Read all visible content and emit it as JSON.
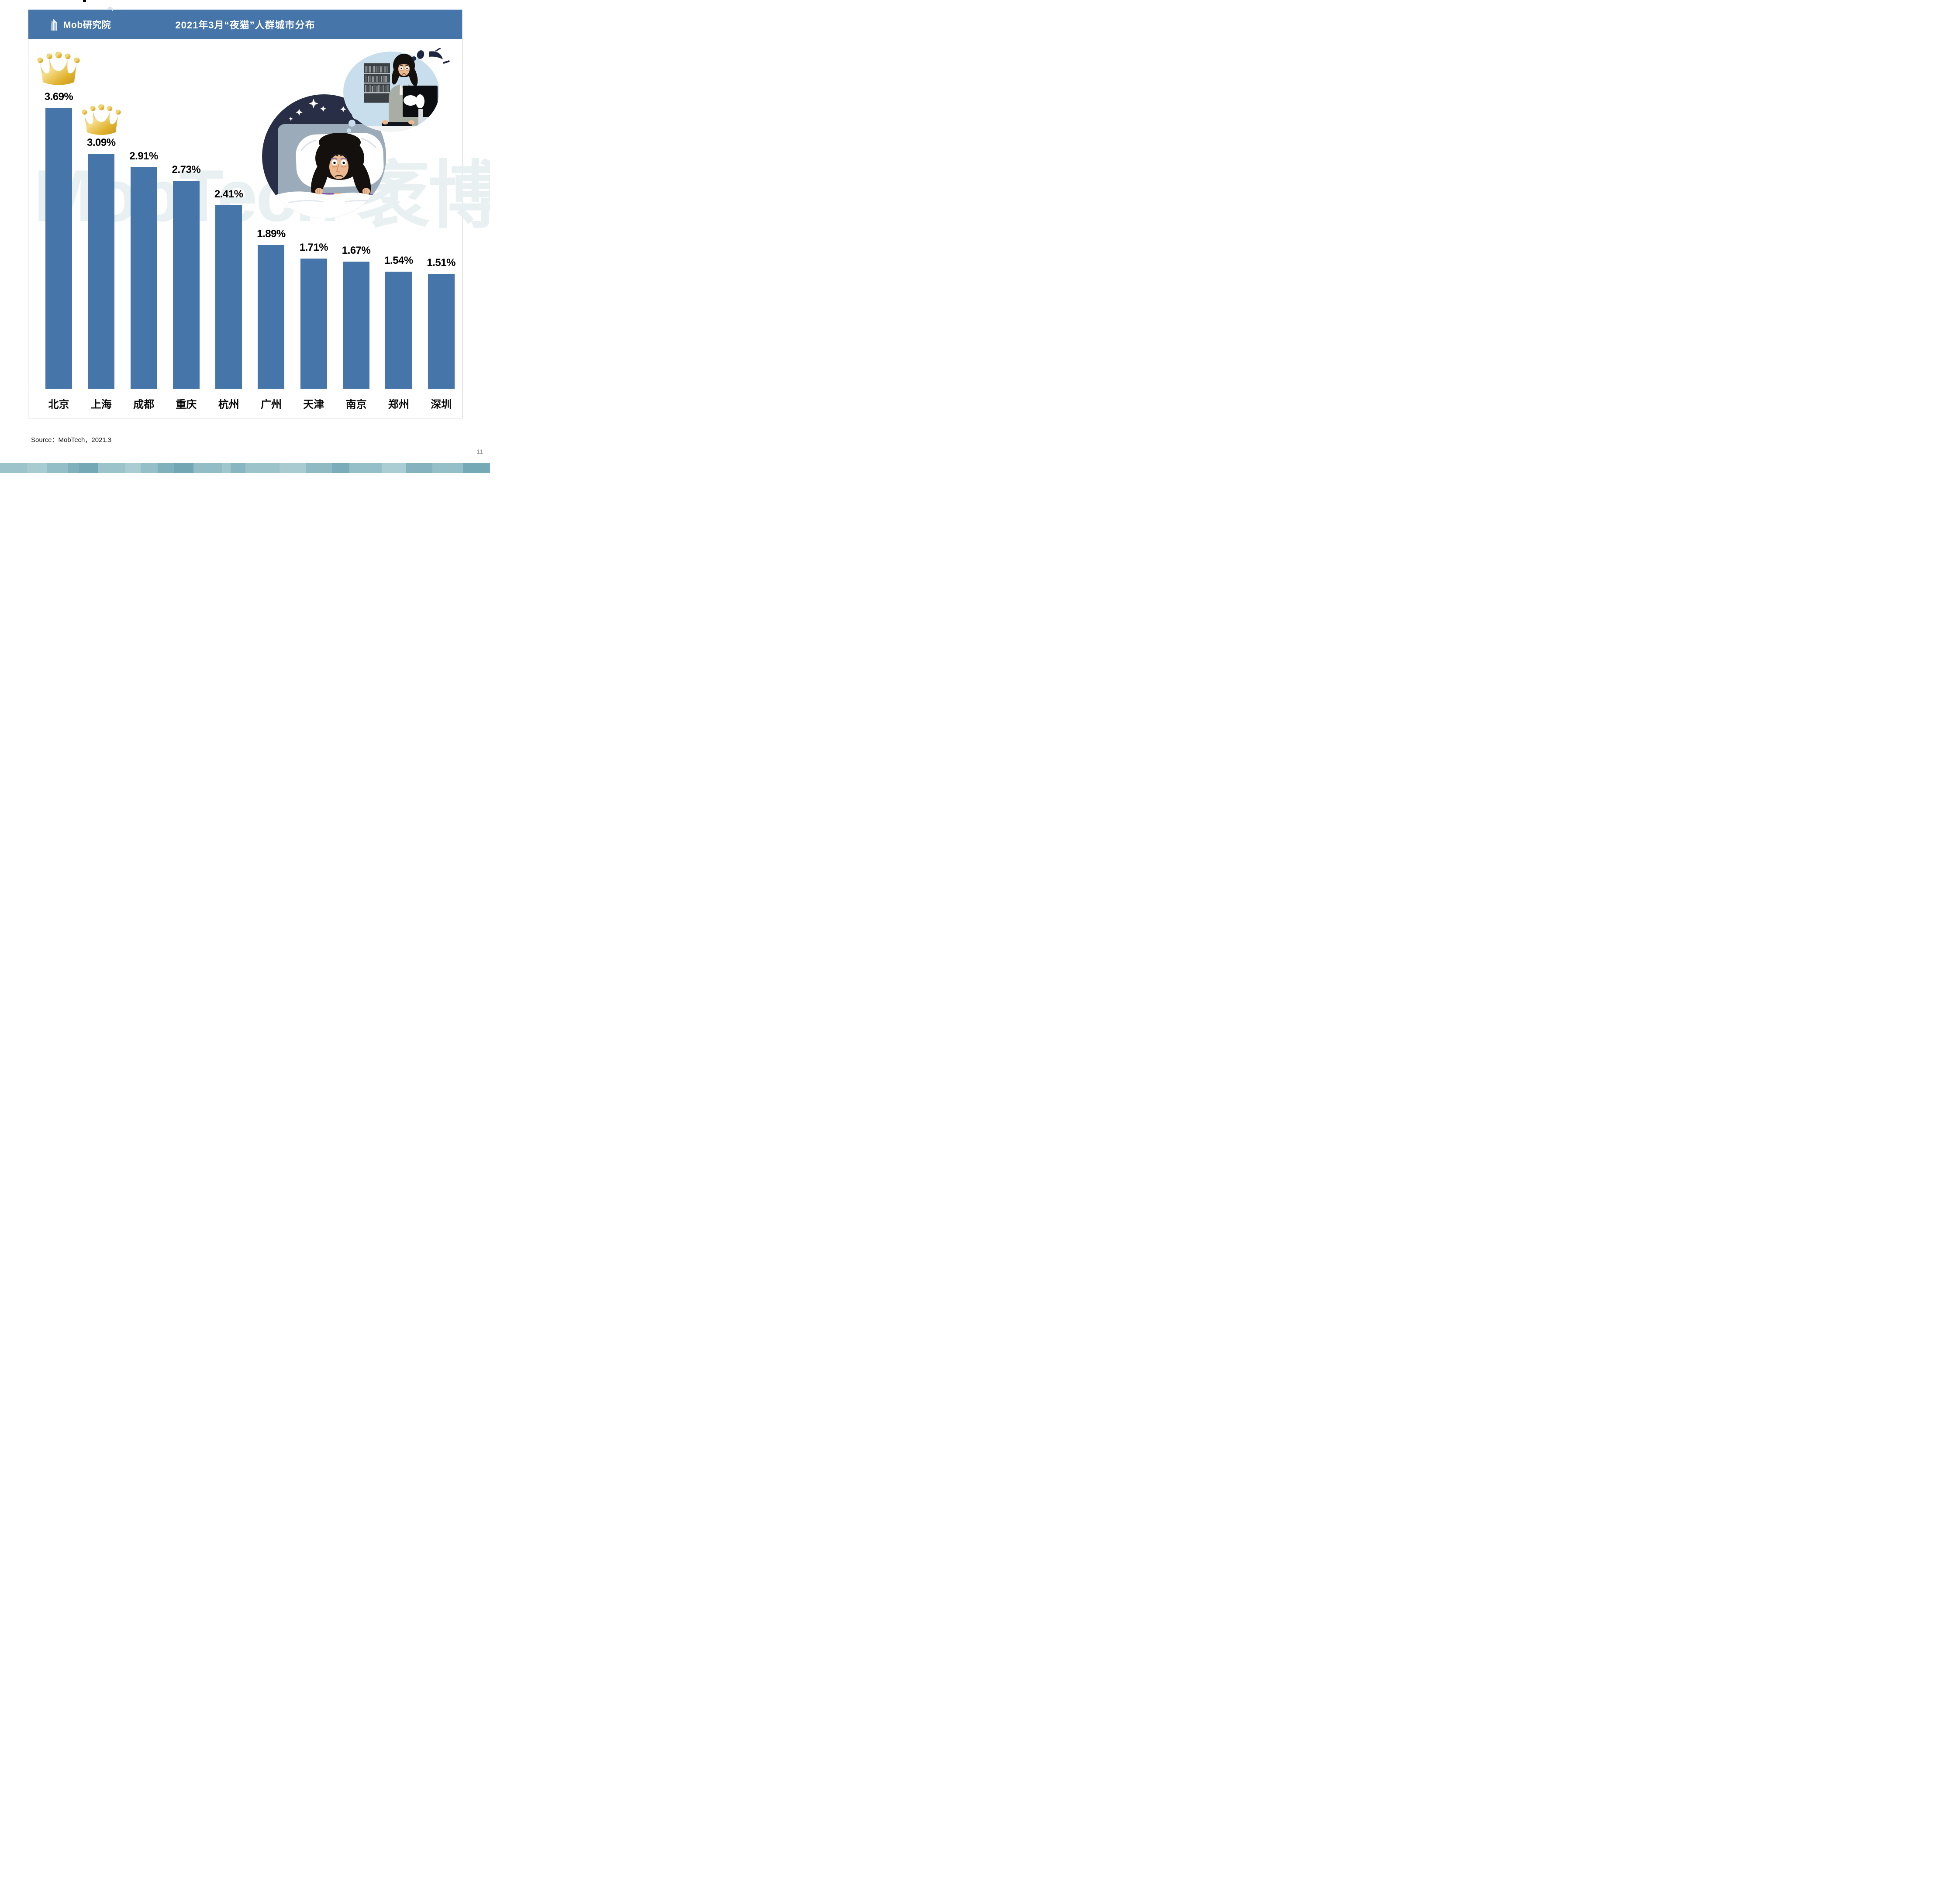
{
  "header": {
    "logo_text": "Mob研究院",
    "title": "2021年3月“夜猫”人群城市分布"
  },
  "watermark": {
    "text": "MobTech 袤博"
  },
  "chart_data": {
    "type": "bar",
    "title": "2021年3月“夜猫”人群城市分布",
    "categories": [
      "北京",
      "上海",
      "成都",
      "重庆",
      "杭州",
      "广州",
      "天津",
      "南京",
      "郑州",
      "深圳"
    ],
    "values": [
      3.69,
      3.09,
      2.91,
      2.73,
      2.41,
      1.89,
      1.71,
      1.67,
      1.54,
      1.51
    ],
    "value_labels": [
      "3.69%",
      "3.09%",
      "2.91%",
      "2.73%",
      "2.41%",
      "1.89%",
      "1.71%",
      "1.67%",
      "1.54%",
      "1.51%"
    ],
    "unit": "%",
    "ylim": [
      0,
      4.0
    ],
    "grid": false,
    "legend": "none",
    "bar_color": "#4575A9",
    "crowned_ranks": [
      "北京",
      "上海"
    ]
  },
  "icons": {
    "crown_first": "gold-crown",
    "crown_second": "gold-crown",
    "logo_building": "building-icon",
    "illustration": "insomnia-woman-in-bed-dreaming-of-computer-work"
  },
  "footer": {
    "source": "Source：MobTech，2021.3",
    "page_number": "11"
  }
}
